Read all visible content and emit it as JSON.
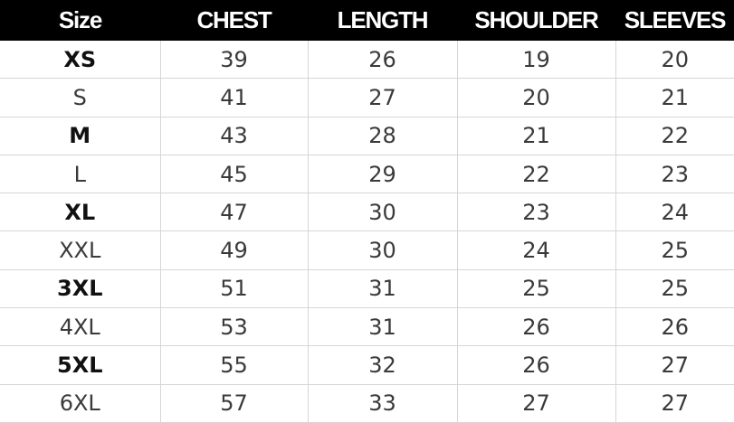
{
  "table": {
    "header": [
      "Size",
      "CHEST",
      "LENGTH",
      "SHOULDER",
      "SLEEVES"
    ],
    "rows": [
      [
        "XS",
        39,
        26,
        19,
        20
      ],
      [
        "S",
        41,
        27,
        20,
        21
      ],
      [
        "M",
        43,
        28,
        21,
        22
      ],
      [
        "L",
        45,
        29,
        22,
        23
      ],
      [
        "XL",
        47,
        30,
        23,
        24
      ],
      [
        "XXL",
        49,
        30,
        24,
        25
      ],
      [
        "3XL",
        51,
        31,
        25,
        25
      ],
      [
        "4XL",
        53,
        31,
        26,
        26
      ],
      [
        "5XL",
        55,
        32,
        26,
        27
      ],
      [
        "6XL",
        57,
        33,
        27,
        27
      ]
    ]
  }
}
